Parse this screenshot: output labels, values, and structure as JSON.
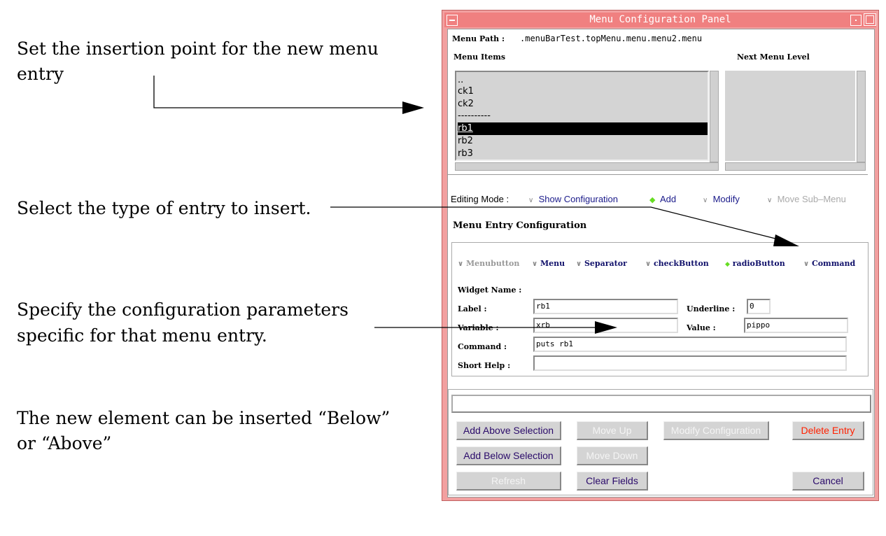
{
  "annotations": {
    "insertion_1": "Set the insertion point for the new menu",
    "insertion_2": "entry",
    "type_1": "Select the type of entry to insert.",
    "params_1": "Specify the configuration parameters",
    "params_2": "specific for that menu entry.",
    "below_1": "The new element can be inserted “Below”",
    "below_2": "or “Above”"
  },
  "window": {
    "title": "Menu Configuration Panel",
    "title_color": "#f08080"
  },
  "menu_path": {
    "label": "Menu Path  :",
    "value": ".menuBarTest.topMenu.menu.menu2.menu"
  },
  "menu_items": {
    "label": "Menu Items",
    "items": [
      "..",
      "ck1",
      "ck2",
      "----------",
      "rb1",
      "rb2",
      "rb3"
    ],
    "selected": "rb1"
  },
  "next_menu_level": {
    "label": "Next Menu Level"
  },
  "editing_mode": {
    "label": "Editing Mode :",
    "options": [
      {
        "label": "Show Configuration",
        "selected": false,
        "enabled": true
      },
      {
        "label": "Add",
        "selected": true,
        "enabled": true
      },
      {
        "label": "Modify",
        "selected": false,
        "enabled": true
      },
      {
        "label": "Move Sub–Menu",
        "selected": false,
        "enabled": false
      }
    ]
  },
  "entry_config": {
    "title": "Menu Entry Configuration",
    "types": [
      {
        "label": "Menubutton",
        "selected": false,
        "enabled": false
      },
      {
        "label": "Menu",
        "selected": false,
        "enabled": true
      },
      {
        "label": "Separator",
        "selected": false,
        "enabled": true
      },
      {
        "label": "checkButton",
        "selected": false,
        "enabled": true
      },
      {
        "label": "radioButton",
        "selected": true,
        "enabled": true
      },
      {
        "label": "Command",
        "selected": false,
        "enabled": true
      }
    ],
    "widget_name_label": "Widget Name :",
    "label_label": "Label :",
    "label_value": "rb1",
    "underline_label": "Underline :",
    "underline_value": "0",
    "variable_label": "Variable :",
    "variable_value": "xrb",
    "value_label": "Value :",
    "value_value": "pippo",
    "command_label": "Command :",
    "command_value": "puts rb1",
    "short_help_label": "Short Help :",
    "short_help_value": ""
  },
  "status_value": "",
  "buttons": {
    "add_above": "Add Above Selection",
    "move_up": "Move Up",
    "modify": "Modify Configuration",
    "delete": "Delete Entry",
    "add_below": "Add Below Selection",
    "move_down": "Move Down",
    "refresh": "Refresh",
    "clear": "Clear Fields",
    "cancel": "Cancel"
  },
  "colors": {
    "accent_selected": "#66dd22",
    "delete": "#ff2000",
    "button_text": "#2a0a6a"
  }
}
